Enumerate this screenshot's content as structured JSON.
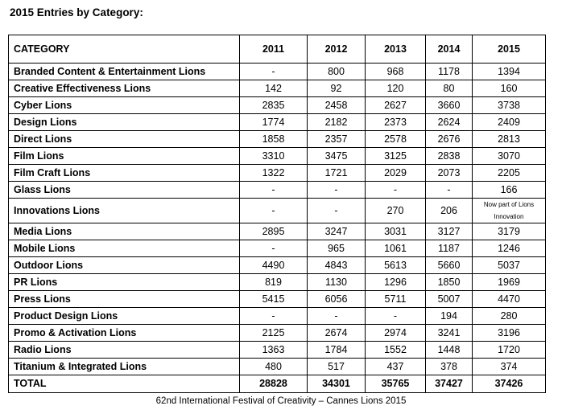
{
  "heading": "2015 Entries by Category:",
  "table": {
    "headers": [
      "CATEGORY",
      "2011",
      "2012",
      "2013",
      "2014",
      "2015"
    ],
    "rows": [
      [
        "Branded Content & Entertainment Lions",
        "-",
        "800",
        "968",
        "1178",
        "1394"
      ],
      [
        "Creative Effectiveness Lions",
        "142",
        "92",
        "120",
        "80",
        "160"
      ],
      [
        "Cyber Lions",
        "2835",
        "2458",
        "2627",
        "3660",
        "3738"
      ],
      [
        "Design Lions",
        "1774",
        "2182",
        "2373",
        "2624",
        "2409"
      ],
      [
        "Direct Lions",
        "1858",
        "2357",
        "2578",
        "2676",
        "2813"
      ],
      [
        "Film Lions",
        "3310",
        "3475",
        "3125",
        "2838",
        "3070"
      ],
      [
        "Film Craft Lions",
        "1322",
        "1721",
        "2029",
        "2073",
        "2205"
      ],
      [
        "Glass Lions",
        "-",
        "-",
        "-",
        "-",
        "166"
      ],
      [
        "Innovations Lions",
        "-",
        "-",
        "270",
        "206",
        "Now part of Lions Innovation"
      ],
      [
        "Media Lions",
        "2895",
        "3247",
        "3031",
        "3127",
        "3179"
      ],
      [
        "Mobile Lions",
        "-",
        "965",
        "1061",
        "1187",
        "1246"
      ],
      [
        "Outdoor Lions",
        "4490",
        "4843",
        "5613",
        "5660",
        "5037"
      ],
      [
        "PR Lions",
        "819",
        "1130",
        "1296",
        "1850",
        "1969"
      ],
      [
        "Press Lions",
        "5415",
        "6056",
        "5711",
        "5007",
        "4470"
      ],
      [
        "Product Design Lions",
        "-",
        "-",
        "-",
        "194",
        "280"
      ],
      [
        "Promo & Activation Lions",
        "2125",
        "2674",
        "2974",
        "3241",
        "3196"
      ],
      [
        "Radio Lions",
        "1363",
        "1784",
        "1552",
        "1448",
        "1720"
      ],
      [
        "Titanium & Integrated Lions",
        "480",
        "517",
        "437",
        "378",
        "374"
      ]
    ],
    "total": [
      "TOTAL",
      "28828",
      "34301",
      "35765",
      "37427",
      "37426"
    ]
  },
  "footer": "62nd International Festival of Creativity – Cannes Lions 2015"
}
